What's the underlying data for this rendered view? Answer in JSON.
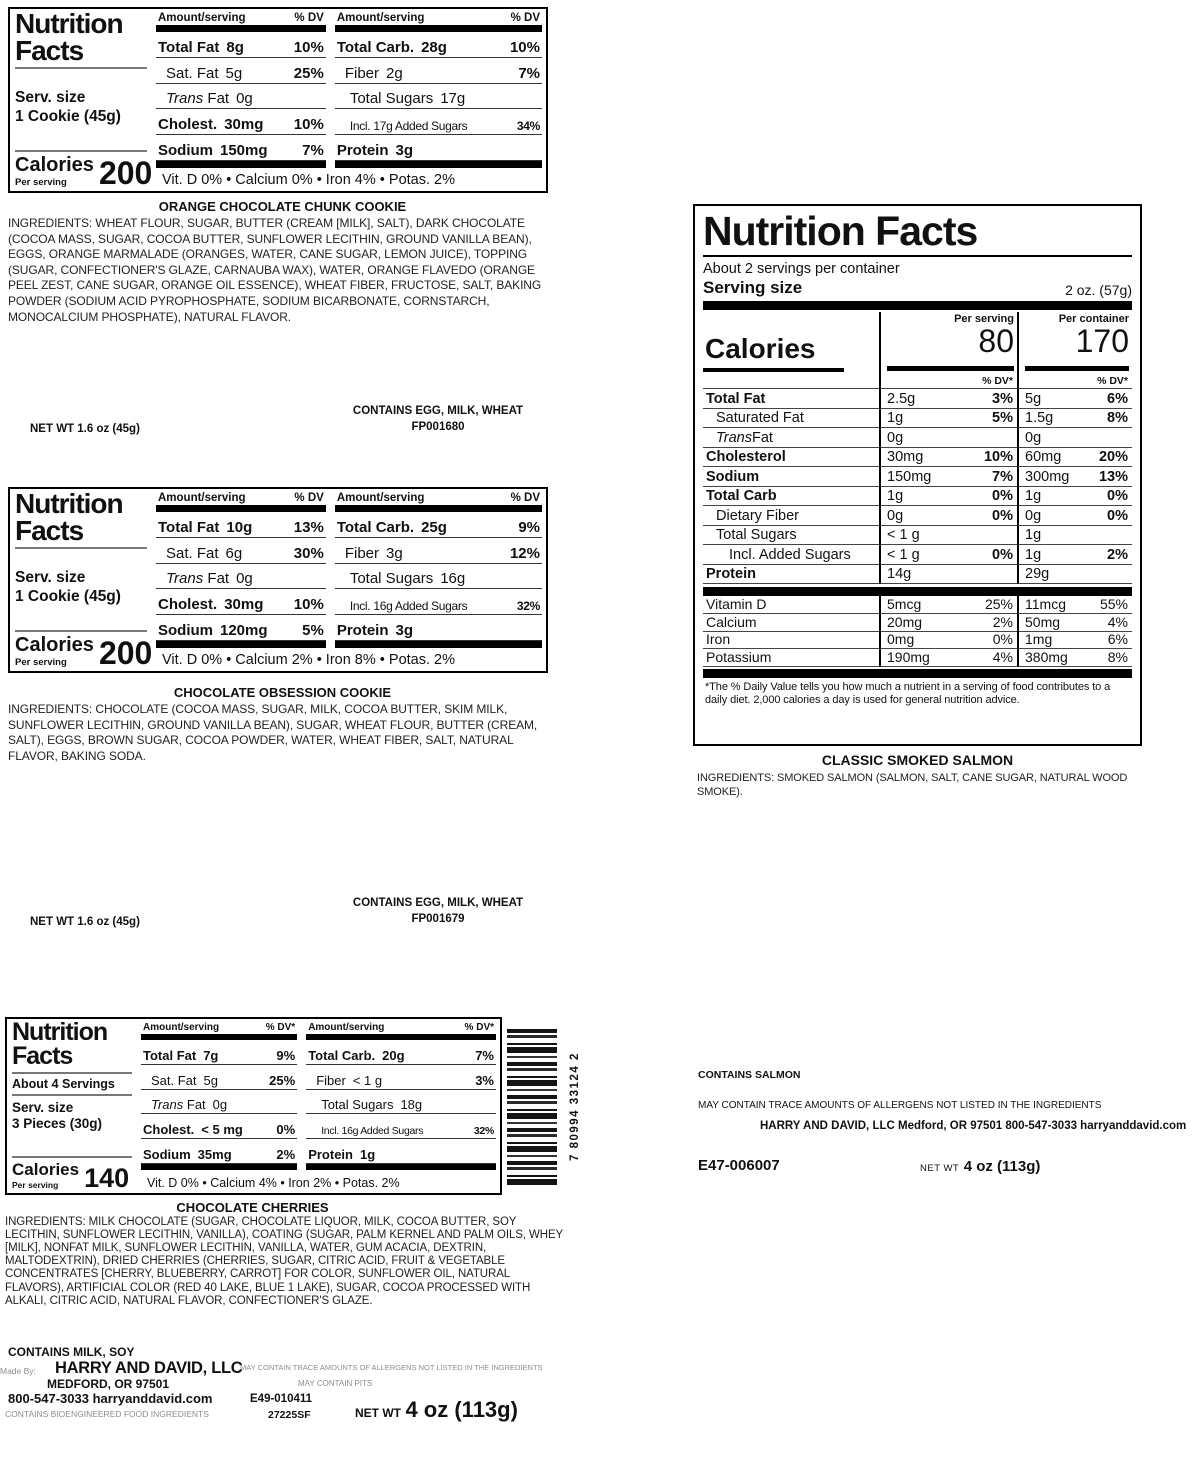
{
  "barcode": {
    "upc": "7 80994 33124 2"
  },
  "labels": {
    "cookie1": {
      "nf_line1": "Nutrition",
      "nf_line2": "Facts",
      "serv_size_label": "Serv. size",
      "serv_size_value": "1 Cookie (45g)",
      "calories_label": "Calories",
      "calories_sub": "Per serving",
      "calories_value": "200",
      "amount_header": "Amount/serving",
      "dv_header": "% DV",
      "left_rows": [
        {
          "name": "Total Fat",
          "amount": "8g",
          "dv": "10%",
          "strong": true
        },
        {
          "name": "Sat. Fat",
          "amount": "5g",
          "dv": "25%",
          "indent": 1
        },
        {
          "iname": "Trans",
          "name": " Fat",
          "amount": "0g",
          "indent": 1
        },
        {
          "name": "Cholest.",
          "amount": "30mg",
          "dv": "10%",
          "strong": true
        },
        {
          "name": "Sodium",
          "amount": "150mg",
          "dv": "7%",
          "strong": true
        }
      ],
      "right_rows": [
        {
          "name": "Total Carb.",
          "amount": "28g",
          "dv": "10%",
          "strong": true
        },
        {
          "name": "Fiber",
          "amount": "2g",
          "dv": "7%",
          "indent": 1
        },
        {
          "name": "Total Sugars",
          "amount": "17g",
          "indent": 2
        },
        {
          "name": "Incl. 17g Added Sugars",
          "dv": "34%",
          "indent": 2,
          "small": true
        },
        {
          "name": "Protein",
          "amount": "3g",
          "strong": true
        }
      ],
      "micros": "Vit. D 0% • Calcium 0% • Iron 4% • Potas. 2%",
      "title": "ORANGE CHOCOLATE CHUNK COOKIE",
      "ingredients": "INGREDIENTS: WHEAT FLOUR, SUGAR, BUTTER (CREAM [MILK], SALT), DARK CHOCOLATE (COCOA MASS, SUGAR, COCOA BUTTER, SUNFLOWER LECITHIN, GROUND VANILLA BEAN), EGGS, ORANGE MARMALADE (ORANGES, WATER, CANE SUGAR, LEMON JUICE), TOPPING (SUGAR, CONFECTIONER'S GLAZE, CARNAUBA WAX), WATER, ORANGE FLAVEDO (ORANGE PEEL ZEST, CANE SUGAR, ORANGE OIL ESSENCE), WHEAT FIBER, FRUCTOSE, SALT, BAKING POWDER (SODIUM ACID PYROPHOSPHATE, SODIUM BICARBONATE, CORNSTARCH, MONOCALCIUM PHOSPHATE), NATURAL FLAVOR.",
      "net_wt": "NET WT 1.6 oz (45g)",
      "contains": "CONTAINS EGG, MILK, WHEAT",
      "code": "FP001680"
    },
    "cookie2": {
      "nf_line1": "Nutrition",
      "nf_line2": "Facts",
      "serv_size_label": "Serv. size",
      "serv_size_value": "1 Cookie (45g)",
      "calories_label": "Calories",
      "calories_sub": "Per serving",
      "calories_value": "200",
      "amount_header": "Amount/serving",
      "dv_header": "% DV",
      "left_rows": [
        {
          "name": "Total Fat",
          "amount": "10g",
          "dv": "13%",
          "strong": true
        },
        {
          "name": "Sat. Fat",
          "amount": "6g",
          "dv": "30%",
          "indent": 1
        },
        {
          "iname": "Trans",
          "name": " Fat",
          "amount": "0g",
          "indent": 1
        },
        {
          "name": "Cholest.",
          "amount": "30mg",
          "dv": "10%",
          "strong": true
        },
        {
          "name": "Sodium",
          "amount": "120mg",
          "dv": "5%",
          "strong": true
        }
      ],
      "right_rows": [
        {
          "name": "Total Carb.",
          "amount": "25g",
          "dv": "9%",
          "strong": true
        },
        {
          "name": "Fiber",
          "amount": "3g",
          "dv": "12%",
          "indent": 1
        },
        {
          "name": "Total Sugars",
          "amount": "16g",
          "indent": 2
        },
        {
          "name": "Incl. 16g Added Sugars",
          "dv": "32%",
          "indent": 2,
          "small": true
        },
        {
          "name": "Protein",
          "amount": "3g",
          "strong": true
        }
      ],
      "micros": "Vit. D 0% • Calcium 2% • Iron 8% • Potas. 2%",
      "title": "CHOCOLATE OBSESSION COOKIE",
      "ingredients": "INGREDIENTS: CHOCOLATE (COCOA MASS, SUGAR, MILK, COCOA BUTTER, SKIM MILK, SUNFLOWER LECITHIN, GROUND VANILLA BEAN), SUGAR, WHEAT FLOUR, BUTTER (CREAM, SALT), EGGS, BROWN SUGAR, COCOA POWDER, WATER, WHEAT FIBER, SALT, NATURAL FLAVOR, BAKING SODA.",
      "net_wt": "NET WT 1.6 oz (45g)",
      "contains": "CONTAINS EGG, MILK, WHEAT",
      "code": "FP001679"
    },
    "cherries": {
      "nf_line1": "Nutrition",
      "nf_line2": "Facts",
      "about_servings": "About 4 Servings",
      "serv_size_label": "Serv. size",
      "serv_size_value": "3 Pieces (30g)",
      "calories_label": "Calories",
      "calories_sub": "Per serving",
      "calories_value": "140",
      "amount_header": "Amount/serving",
      "dv_header": "% DV*",
      "left_rows": [
        {
          "name": "Total Fat",
          "amount": "7g",
          "dv": "9%",
          "strong": true
        },
        {
          "name": "Sat. Fat",
          "amount": "5g",
          "dv": "25%",
          "indent": 1
        },
        {
          "iname": "Trans",
          "name": " Fat",
          "amount": "0g",
          "indent": 1
        },
        {
          "name": "Cholest.",
          "amount": "< 5 mg",
          "dv": "0%",
          "strong": true
        },
        {
          "name": "Sodium",
          "amount": "35mg",
          "dv": "2%",
          "strong": true
        }
      ],
      "right_rows": [
        {
          "name": "Total Carb.",
          "amount": "20g",
          "dv": "7%",
          "strong": true
        },
        {
          "name": "Fiber",
          "amount": "< 1 g",
          "dv": "3%",
          "indent": 1
        },
        {
          "name": "Total Sugars",
          "amount": "18g",
          "indent": 2
        },
        {
          "name": "Incl. 16g Added Sugars",
          "dv": "32%",
          "indent": 2,
          "small": true
        },
        {
          "name": "Protein",
          "amount": "1g",
          "strong": true
        }
      ],
      "micros": "Vit. D 0% • Calcium 4% • Iron 2% • Potas. 2%",
      "title": "CHOCOLATE CHERRIES",
      "ingredients": "INGREDIENTS: MILK CHOCOLATE (SUGAR, CHOCOLATE LIQUOR, MILK, COCOA BUTTER, SOY LECITHIN, SUNFLOWER LECITHIN, VANILLA), COATING (SUGAR, PALM KERNEL AND PALM OILS, WHEY [MILK], NONFAT MILK, SUNFLOWER LECITHIN, VANILLA, WATER, GUM ACACIA, DEXTRIN, MALTODEXTRIN), DRIED CHERRIES (CHERRIES, SUGAR, CITRIC ACID, FRUIT & VEGETABLE CONCENTRATES [CHERRY, BLUEBERRY, CARROT] FOR COLOR, SUNFLOWER OIL, NATURAL FLAVORS), ARTIFICIAL COLOR (RED 40 LAKE, BLUE 1 LAKE), SUGAR, COCOA PROCESSED WITH ALKALI, CITRIC ACID, NATURAL FLAVOR, CONFECTIONER'S GLAZE.",
      "contains": "CONTAINS MILK, SOY",
      "made_by_label": "Made By:",
      "company": "HARRY AND DAVID, LLC",
      "address": "MEDFORD, OR 97501",
      "phone_web": "800-547-3033 harryanddavid.com",
      "bioengineered": "CONTAINS BIOENGINEERED FOOD INGREDIENTS",
      "allergen_note": "MAY CONTAIN TRACE AMOUNTS OF ALLERGENS NOT LISTED IN THE INGREDIENTS",
      "may_contain": "MAY CONTAIN PITS",
      "code1": "E49-010411",
      "code2": "27225SF",
      "net_wt_label": "NET WT",
      "net_wt_value": "4 oz (113g)"
    },
    "salmon": {
      "nf_title": "Nutrition Facts",
      "servings_per_container": "About 2 servings per container",
      "serving_size_label": "Serving size",
      "serving_size_value": "2 oz. (57g)",
      "calories_label": "Calories",
      "col1_header": "Per serving",
      "col2_header": "Per container",
      "calories_per_serving": "80",
      "calories_per_container": "170",
      "dv_header": "% DV*",
      "rows": [
        {
          "name": "Total Fat",
          "bold": true,
          "v1": "2.5g",
          "p1": "3%",
          "v2": "5g",
          "p2": "6%"
        },
        {
          "name": "Saturated Fat",
          "indent": 1,
          "v1": "1g",
          "p1": "5%",
          "v2": "1.5g",
          "p2": "8%"
        },
        {
          "iname": "Trans",
          "name": " Fat",
          "indent": 1,
          "v1": "0g",
          "v2": "0g"
        },
        {
          "name": "Cholesterol",
          "bold": true,
          "v1": "30mg",
          "p1": "10%",
          "v2": "60mg",
          "p2": "20%"
        },
        {
          "name": "Sodium",
          "bold": true,
          "v1": "150mg",
          "p1": "7%",
          "v2": "300mg",
          "p2": "13%"
        },
        {
          "name": "Total Carb",
          "bold": true,
          "v1": "1g",
          "p1": "0%",
          "v2": "1g",
          "p2": "0%"
        },
        {
          "name": "Dietary Fiber",
          "indent": 1,
          "v1": "0g",
          "p1": "0%",
          "v2": "0g",
          "p2": "0%"
        },
        {
          "name": "Total Sugars",
          "indent": 1,
          "v1": "< 1 g",
          "v2": "1g"
        },
        {
          "name": "Incl. Added Sugars",
          "indent": 2,
          "v1": "< 1 g",
          "p1": "0%",
          "v2": "1g",
          "p2": "2%"
        },
        {
          "name": "Protein",
          "bold": true,
          "v1": "14g",
          "v2": "29g"
        }
      ],
      "vitamins": [
        {
          "name": "Vitamin D",
          "v1": "5mcg",
          "p1": "25%",
          "v2": "11mcg",
          "p2": "55%"
        },
        {
          "name": "Calcium",
          "v1": "20mg",
          "p1": "2%",
          "v2": "50mg",
          "p2": "4%"
        },
        {
          "name": "Iron",
          "v1": "0mg",
          "p1": "0%",
          "v2": "1mg",
          "p2": "6%"
        },
        {
          "name": "Potassium",
          "v1": "190mg",
          "p1": "4%",
          "v2": "380mg",
          "p2": "8%"
        }
      ],
      "footnote": "*The % Daily Value tells you how much a nutrient in a serving of food contributes to a daily diet.  2,000 calories a day is used for general nutrition advice.",
      "title": "CLASSIC SMOKED SALMON",
      "ingredients": "INGREDIENTS: SMOKED SALMON (SALMON, SALT, CANE SUGAR, NATURAL WOOD SMOKE).",
      "contains": "CONTAINS SALMON",
      "allergen_note": "MAY CONTAIN TRACE AMOUNTS OF ALLERGENS NOT LISTED IN THE INGREDIENTS",
      "company_line": "HARRY AND DAVID, LLC  Medford, OR 97501 800-547-3033 harryanddavid.com",
      "item_code": "E47-006007",
      "net_wt_label": "NET WT",
      "net_wt_value": "4 oz (113g)"
    }
  }
}
